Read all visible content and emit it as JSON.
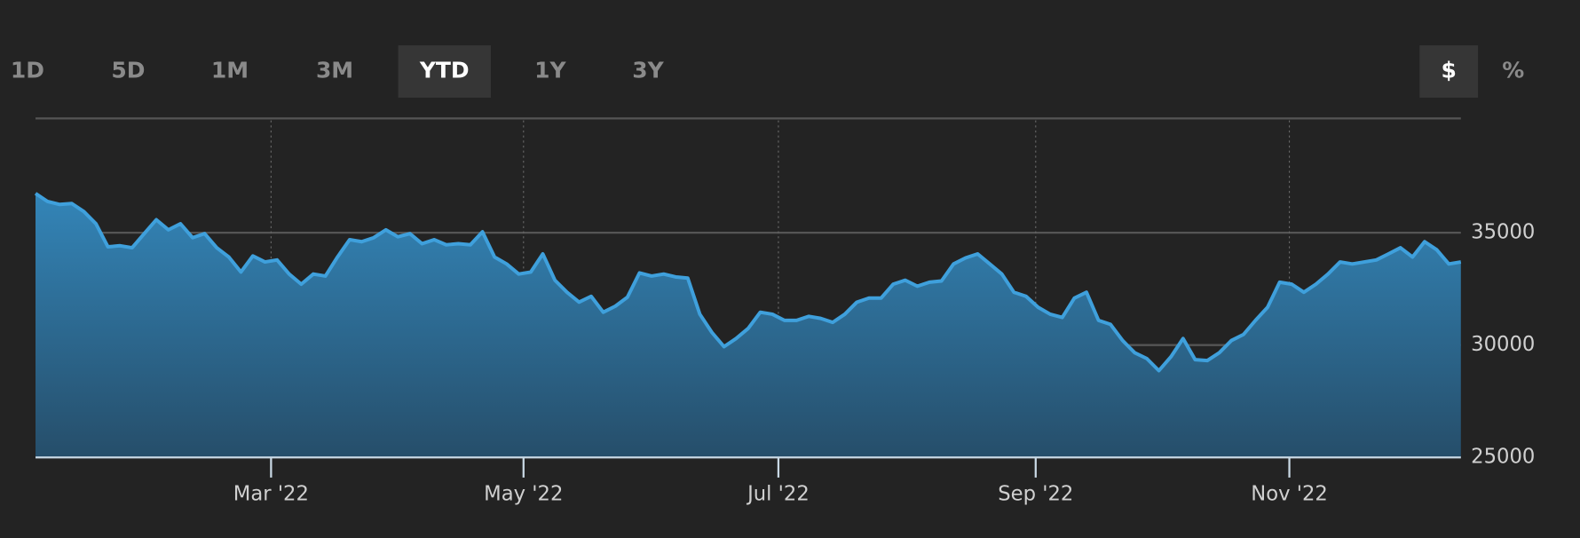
{
  "buttons": [
    "1D",
    "5D",
    "1M",
    "3M",
    "YTD",
    "1Y",
    "3Y"
  ],
  "units": [
    "$",
    "%"
  ],
  "chart_data": {
    "type": "area",
    "series": [
      {
        "color": "#3fa0dc",
        "values": [
          36750,
          36390,
          36260,
          36300,
          35940,
          35400,
          34370,
          34420,
          34330,
          34960,
          35580,
          35130,
          35400,
          34780,
          34960,
          34330,
          33920,
          33250,
          33970,
          33700,
          33790,
          33160,
          32710,
          33160,
          33070,
          33920,
          34690,
          34600,
          34780,
          35130,
          34820,
          34960,
          34510,
          34690,
          34460,
          34510,
          34460,
          35040,
          33920,
          33610,
          33160,
          33250,
          34060,
          32890,
          32350,
          31910,
          32170,
          31460,
          31730,
          32130,
          33210,
          33070,
          33160,
          33030,
          32980,
          31370,
          30560,
          29930,
          30290,
          30740,
          31460,
          31370,
          31100,
          31100,
          31280,
          31190,
          31010,
          31370,
          31910,
          32090,
          32090,
          32710,
          32890,
          32620,
          32800,
          32850,
          33610,
          33880,
          34060,
          33610,
          33160,
          32350,
          32170,
          31680,
          31370,
          31230,
          32090,
          32350,
          31100,
          30920,
          30200,
          29660,
          29400,
          28860,
          29480,
          30290,
          29350,
          29310,
          29660,
          30200,
          30470,
          31100,
          31680,
          32800,
          32710,
          32350,
          32710,
          33160,
          33700,
          33610,
          33700,
          33790,
          34060,
          34330,
          33920,
          34600,
          34240,
          33610,
          33700
        ]
      }
    ],
    "xlim": [
      0,
      118
    ],
    "xticks": [
      {
        "value": 19.5,
        "label": "Mar '22"
      },
      {
        "value": 40.4,
        "label": "May '22"
      },
      {
        "value": 61.5,
        "label": "Jul '22"
      },
      {
        "value": 82.8,
        "label": "Sep '22"
      },
      {
        "value": 103.8,
        "label": "Nov '22"
      }
    ],
    "ylim": [
      25000,
      40000
    ],
    "yticks": [
      25000,
      30000,
      35000
    ],
    "grid": true
  }
}
